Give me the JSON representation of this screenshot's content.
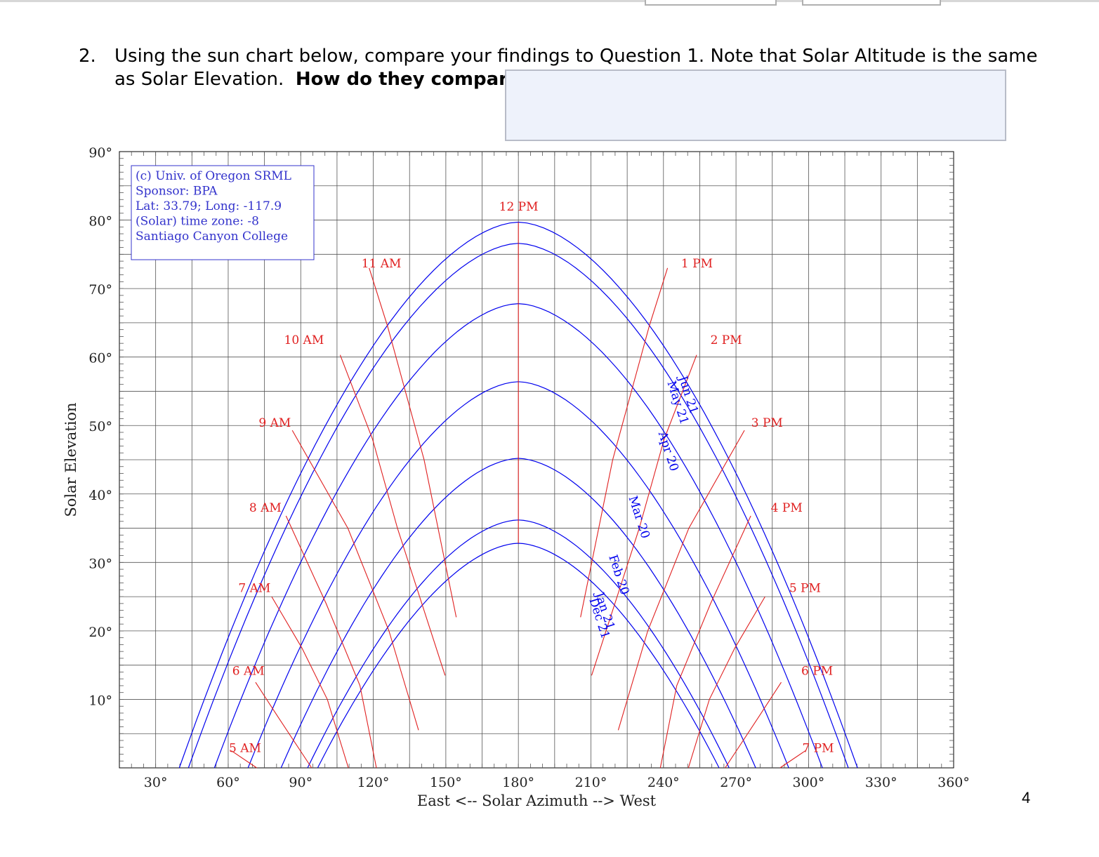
{
  "question": {
    "number": "2.",
    "text_line1": "Using the sun chart below, compare your findings to Question 1.  Note that Solar Altitude is the same",
    "text_line2": "as Solar Elevation.",
    "emphasis": "How do they compare?"
  },
  "answer_box": {
    "value": ""
  },
  "page_number": "4",
  "colors": {
    "sun_paths": "#0000ee",
    "hour_lines": "#e02020",
    "grid": "#000000",
    "info_border": "#3333cc"
  },
  "chart_data": {
    "type": "line",
    "xlabel": "East <-- Solar Azimuth --> West",
    "ylabel": "Solar Elevation",
    "xlim": [
      15,
      360
    ],
    "ylim": [
      0,
      90
    ],
    "x_ticks": [
      30,
      60,
      90,
      120,
      150,
      180,
      210,
      240,
      270,
      300,
      330,
      360
    ],
    "y_ticks": [
      10,
      20,
      30,
      40,
      50,
      60,
      70,
      80,
      90
    ],
    "x_tick_labels": [
      "30°",
      "60°",
      "90°",
      "120°",
      "150°",
      "180°",
      "210°",
      "240°",
      "270°",
      "300°",
      "330°",
      "360°"
    ],
    "y_tick_labels": [
      "10°",
      "20°",
      "30°",
      "40°",
      "50°",
      "60°",
      "70°",
      "80°",
      "90°"
    ],
    "grid": true,
    "info_box": {
      "lines": [
        "(c) Univ. of Oregon SRML",
        "Sponsor: BPA",
        "Lat: 33.79; Long: -117.9",
        "(Solar) time zone: -8",
        "Santiago Canyon College"
      ],
      "placement": "top-left"
    },
    "sun_paths": [
      {
        "name": "Jun 21",
        "max_elevation": 79.7
      },
      {
        "name": "May 21",
        "max_elevation": 76.6
      },
      {
        "name": "Apr 20",
        "max_elevation": 67.8
      },
      {
        "name": "Mar 20",
        "max_elevation": 56.4
      },
      {
        "name": "Feb 20",
        "max_elevation": 45.2
      },
      {
        "name": "Jan 21",
        "max_elevation": 36.2
      },
      {
        "name": "Dec 21",
        "max_elevation": 32.8
      }
    ],
    "path_labels": [
      {
        "text": "Jun 21",
        "x": 246.3,
        "y": 57.0
      },
      {
        "text": "May 21",
        "x": 241.6,
        "y": 56.3
      },
      {
        "text": "Apr 20",
        "x": 237.9,
        "y": 48.9
      },
      {
        "text": "Mar 20",
        "x": 225.6,
        "y": 39.5
      },
      {
        "text": "Feb 20",
        "x": 217.4,
        "y": 30.9
      },
      {
        "text": "Jan 21",
        "x": 211.9,
        "y": 25.4
      },
      {
        "text": "Dec 21",
        "x": 209.3,
        "y": 24.6
      }
    ],
    "hour_lines": [
      {
        "label": "5 AM",
        "label_at": [
          60.3,
          2.3
        ],
        "points": [
          [
            71.8,
            0
          ],
          [
            61.3,
            2.5
          ]
        ]
      },
      {
        "label": "6 AM",
        "label_at": [
          61.7,
          13.6
        ],
        "points": [
          [
            94.5,
            0
          ],
          [
            80.5,
            7.5
          ],
          [
            71.3,
            12.5
          ]
        ]
      },
      {
        "label": "7 AM",
        "label_at": [
          64.2,
          25.7
        ],
        "points": [
          [
            109.7,
            0
          ],
          [
            101.0,
            10.0
          ],
          [
            90.5,
            17.5
          ],
          [
            78.0,
            25.0
          ]
        ]
      },
      {
        "label": "8 AM",
        "label_at": [
          68.7,
          37.4
        ],
        "points": [
          [
            121.3,
            0
          ],
          [
            114.5,
            12.0
          ],
          [
            100.5,
            24.0
          ],
          [
            83.9,
            36.8
          ]
        ]
      },
      {
        "label": "9 AM",
        "label_at": [
          72.6,
          49.8
        ],
        "points": [
          [
            138.7,
            5.5
          ],
          [
            126.5,
            20.0
          ],
          [
            109.5,
            35.0
          ],
          [
            86.5,
            49.3
          ]
        ]
      },
      {
        "label": "10 AM",
        "label_at": [
          83.1,
          61.9
        ],
        "points": [
          [
            149.7,
            13.5
          ],
          [
            130.0,
            35.0
          ],
          [
            119.7,
            48.0
          ],
          [
            106.3,
            60.3
          ]
        ]
      },
      {
        "label": "11 AM",
        "label_at": [
          115.1,
          73.1
        ],
        "points": [
          [
            154.3,
            22.0
          ],
          [
            141.0,
            45.0
          ],
          [
            125.9,
            64.5
          ],
          [
            118.3,
            73.0
          ]
        ]
      },
      {
        "label": "12 PM",
        "label_at": [
          172.0,
          81.4
        ],
        "points": [
          [
            180.0,
            32.8
          ],
          [
            180.0,
            79.7
          ]
        ]
      },
      {
        "label": "1 PM",
        "label_at": [
          247.3,
          73.1
        ],
        "points": [
          [
            205.7,
            22.0
          ],
          [
            219.0,
            45.0
          ],
          [
            234.1,
            64.5
          ],
          [
            241.7,
            73.0
          ]
        ]
      },
      {
        "label": "2 PM",
        "label_at": [
          259.4,
          61.9
        ],
        "points": [
          [
            210.3,
            13.5
          ],
          [
            230.0,
            35.0
          ],
          [
            240.3,
            48.0
          ],
          [
            253.7,
            60.3
          ]
        ]
      },
      {
        "label": "3 PM",
        "label_at": [
          276.3,
          49.8
        ],
        "points": [
          [
            221.3,
            5.5
          ],
          [
            233.5,
            20.0
          ],
          [
            250.5,
            35.0
          ],
          [
            273.5,
            49.3
          ]
        ]
      },
      {
        "label": "4 PM",
        "label_at": [
          284.4,
          37.4
        ],
        "points": [
          [
            238.7,
            0
          ],
          [
            245.5,
            12.0
          ],
          [
            259.5,
            24.0
          ],
          [
            276.1,
            36.8
          ]
        ]
      },
      {
        "label": "5 PM",
        "label_at": [
          292.0,
          25.7
        ],
        "points": [
          [
            250.3,
            0
          ],
          [
            259.0,
            10.0
          ],
          [
            269.5,
            17.5
          ],
          [
            282.0,
            25.0
          ]
        ]
      },
      {
        "label": "6 PM",
        "label_at": [
          297.0,
          13.6
        ],
        "points": [
          [
            265.5,
            0
          ],
          [
            279.5,
            7.5
          ],
          [
            288.7,
            12.5
          ]
        ]
      },
      {
        "label": "7 PM",
        "label_at": [
          297.4,
          2.3
        ],
        "points": [
          [
            288.2,
            0
          ],
          [
            298.7,
            2.5
          ]
        ]
      }
    ]
  }
}
